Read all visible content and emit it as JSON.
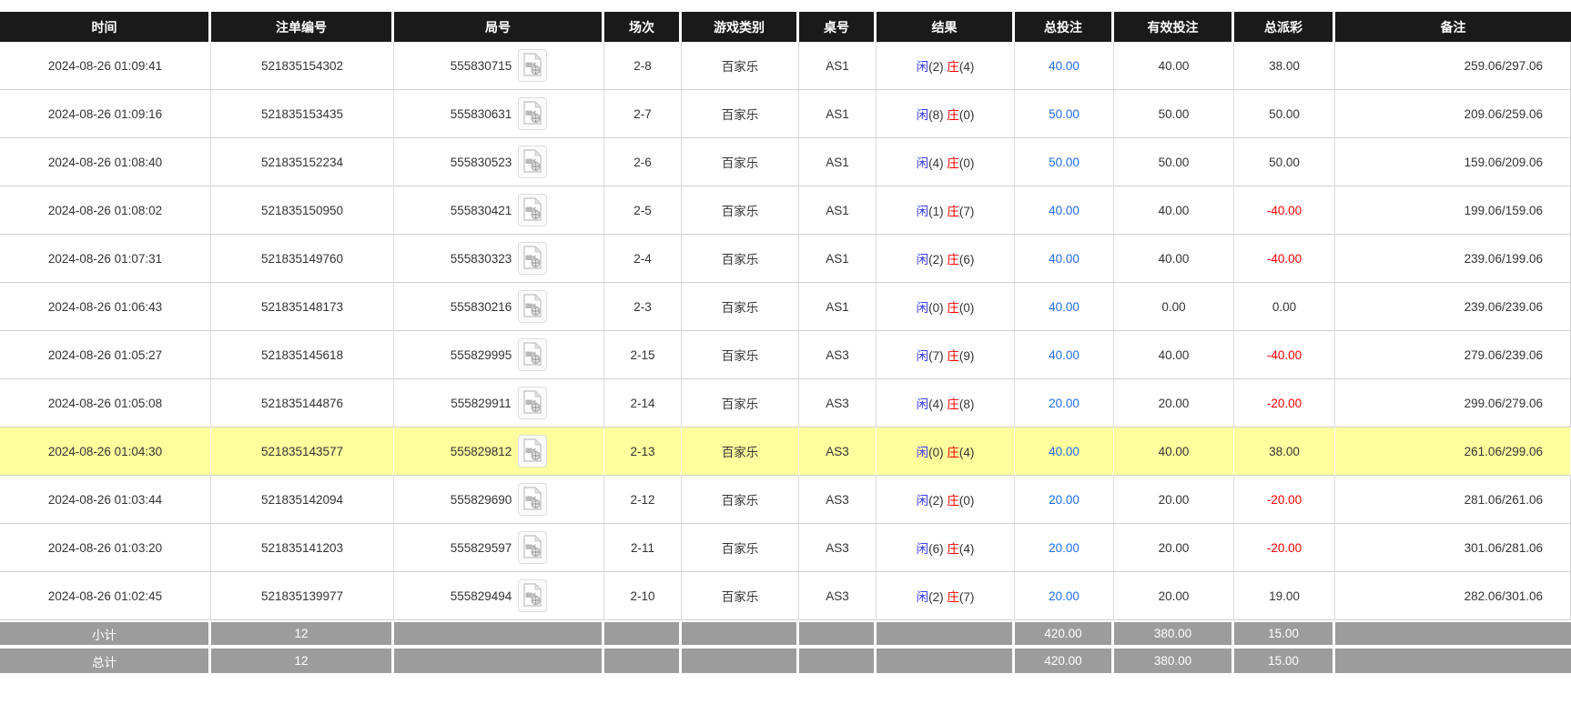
{
  "colors": {
    "header_bg": "#1a1a1a",
    "highlight_row": "#ffff9e",
    "summary_bg": "#9c9c9c",
    "amount_blue": "#1e6bf1",
    "player_blue": "#3b3bff",
    "negative_red": "#ff0000"
  },
  "table": {
    "columns": [
      {
        "key": "time",
        "label": "时间"
      },
      {
        "key": "bet_id",
        "label": "注单编号"
      },
      {
        "key": "round_id",
        "label": "局号"
      },
      {
        "key": "session",
        "label": "场次"
      },
      {
        "key": "game_type",
        "label": "游戏类别"
      },
      {
        "key": "table_no",
        "label": "桌号"
      },
      {
        "key": "result",
        "label": "结果"
      },
      {
        "key": "total_bet",
        "label": "总投注"
      },
      {
        "key": "valid_bet",
        "label": "有效投注"
      },
      {
        "key": "total_payout",
        "label": "总派彩"
      },
      {
        "key": "remark",
        "label": "备注"
      }
    ],
    "video_icon_name": "video-replay-icon",
    "rows": [
      {
        "time": "2024-08-26 01:09:41",
        "bet_id": "521835154302",
        "round_id": "555830715",
        "session": "2-8",
        "game_type": "百家乐",
        "table_no": "AS1",
        "result": {
          "player_label": "闲",
          "player_value": "(2)",
          "banker_label": "庄",
          "banker_value": "(4)"
        },
        "total_bet": "40.00",
        "valid_bet": "40.00",
        "total_payout": "38.00",
        "remark": "259.06/297.06",
        "highlighted": false
      },
      {
        "time": "2024-08-26 01:09:16",
        "bet_id": "521835153435",
        "round_id": "555830631",
        "session": "2-7",
        "game_type": "百家乐",
        "table_no": "AS1",
        "result": {
          "player_label": "闲",
          "player_value": "(8)",
          "banker_label": "庄",
          "banker_value": "(0)"
        },
        "total_bet": "50.00",
        "valid_bet": "50.00",
        "total_payout": "50.00",
        "remark": "209.06/259.06",
        "highlighted": false
      },
      {
        "time": "2024-08-26 01:08:40",
        "bet_id": "521835152234",
        "round_id": "555830523",
        "session": "2-6",
        "game_type": "百家乐",
        "table_no": "AS1",
        "result": {
          "player_label": "闲",
          "player_value": "(4)",
          "banker_label": "庄",
          "banker_value": "(0)"
        },
        "total_bet": "50.00",
        "valid_bet": "50.00",
        "total_payout": "50.00",
        "remark": "159.06/209.06",
        "highlighted": false
      },
      {
        "time": "2024-08-26 01:08:02",
        "bet_id": "521835150950",
        "round_id": "555830421",
        "session": "2-5",
        "game_type": "百家乐",
        "table_no": "AS1",
        "result": {
          "player_label": "闲",
          "player_value": "(1)",
          "banker_label": "庄",
          "banker_value": "(7)"
        },
        "total_bet": "40.00",
        "valid_bet": "40.00",
        "total_payout": "-40.00",
        "remark": "199.06/159.06",
        "highlighted": false
      },
      {
        "time": "2024-08-26 01:07:31",
        "bet_id": "521835149760",
        "round_id": "555830323",
        "session": "2-4",
        "game_type": "百家乐",
        "table_no": "AS1",
        "result": {
          "player_label": "闲",
          "player_value": "(2)",
          "banker_label": "庄",
          "banker_value": "(6)"
        },
        "total_bet": "40.00",
        "valid_bet": "40.00",
        "total_payout": "-40.00",
        "remark": "239.06/199.06",
        "highlighted": false
      },
      {
        "time": "2024-08-26 01:06:43",
        "bet_id": "521835148173",
        "round_id": "555830216",
        "session": "2-3",
        "game_type": "百家乐",
        "table_no": "AS1",
        "result": {
          "player_label": "闲",
          "player_value": "(0)",
          "banker_label": "庄",
          "banker_value": "(0)"
        },
        "total_bet": "40.00",
        "valid_bet": "0.00",
        "total_payout": "0.00",
        "remark": "239.06/239.06",
        "highlighted": false
      },
      {
        "time": "2024-08-26 01:05:27",
        "bet_id": "521835145618",
        "round_id": "555829995",
        "session": "2-15",
        "game_type": "百家乐",
        "table_no": "AS3",
        "result": {
          "player_label": "闲",
          "player_value": "(7)",
          "banker_label": "庄",
          "banker_value": "(9)"
        },
        "total_bet": "40.00",
        "valid_bet": "40.00",
        "total_payout": "-40.00",
        "remark": "279.06/239.06",
        "highlighted": false
      },
      {
        "time": "2024-08-26 01:05:08",
        "bet_id": "521835144876",
        "round_id": "555829911",
        "session": "2-14",
        "game_type": "百家乐",
        "table_no": "AS3",
        "result": {
          "player_label": "闲",
          "player_value": "(4)",
          "banker_label": "庄",
          "banker_value": "(8)"
        },
        "total_bet": "20.00",
        "valid_bet": "20.00",
        "total_payout": "-20.00",
        "remark": "299.06/279.06",
        "highlighted": false
      },
      {
        "time": "2024-08-26 01:04:30",
        "bet_id": "521835143577",
        "round_id": "555829812",
        "session": "2-13",
        "game_type": "百家乐",
        "table_no": "AS3",
        "result": {
          "player_label": "闲",
          "player_value": "(0)",
          "banker_label": "庄",
          "banker_value": "(4)"
        },
        "total_bet": "40.00",
        "valid_bet": "40.00",
        "total_payout": "38.00",
        "remark": "261.06/299.06",
        "highlighted": true
      },
      {
        "time": "2024-08-26 01:03:44",
        "bet_id": "521835142094",
        "round_id": "555829690",
        "session": "2-12",
        "game_type": "百家乐",
        "table_no": "AS3",
        "result": {
          "player_label": "闲",
          "player_value": "(2)",
          "banker_label": "庄",
          "banker_value": "(0)"
        },
        "total_bet": "20.00",
        "valid_bet": "20.00",
        "total_payout": "-20.00",
        "remark": "281.06/261.06",
        "highlighted": false
      },
      {
        "time": "2024-08-26 01:03:20",
        "bet_id": "521835141203",
        "round_id": "555829597",
        "session": "2-11",
        "game_type": "百家乐",
        "table_no": "AS3",
        "result": {
          "player_label": "闲",
          "player_value": "(6)",
          "banker_label": "庄",
          "banker_value": "(4)"
        },
        "total_bet": "20.00",
        "valid_bet": "20.00",
        "total_payout": "-20.00",
        "remark": "301.06/281.06",
        "highlighted": false
      },
      {
        "time": "2024-08-26 01:02:45",
        "bet_id": "521835139977",
        "round_id": "555829494",
        "session": "2-10",
        "game_type": "百家乐",
        "table_no": "AS3",
        "result": {
          "player_label": "闲",
          "player_value": "(2)",
          "banker_label": "庄",
          "banker_value": "(7)"
        },
        "total_bet": "20.00",
        "valid_bet": "20.00",
        "total_payout": "19.00",
        "remark": "282.06/301.06",
        "highlighted": false
      }
    ],
    "summary_rows": [
      {
        "label": "小计",
        "count": "12",
        "total_bet": "420.00",
        "valid_bet": "380.00",
        "total_payout": "15.00"
      },
      {
        "label": "总计",
        "count": "12",
        "total_bet": "420.00",
        "valid_bet": "380.00",
        "total_payout": "15.00"
      }
    ]
  }
}
